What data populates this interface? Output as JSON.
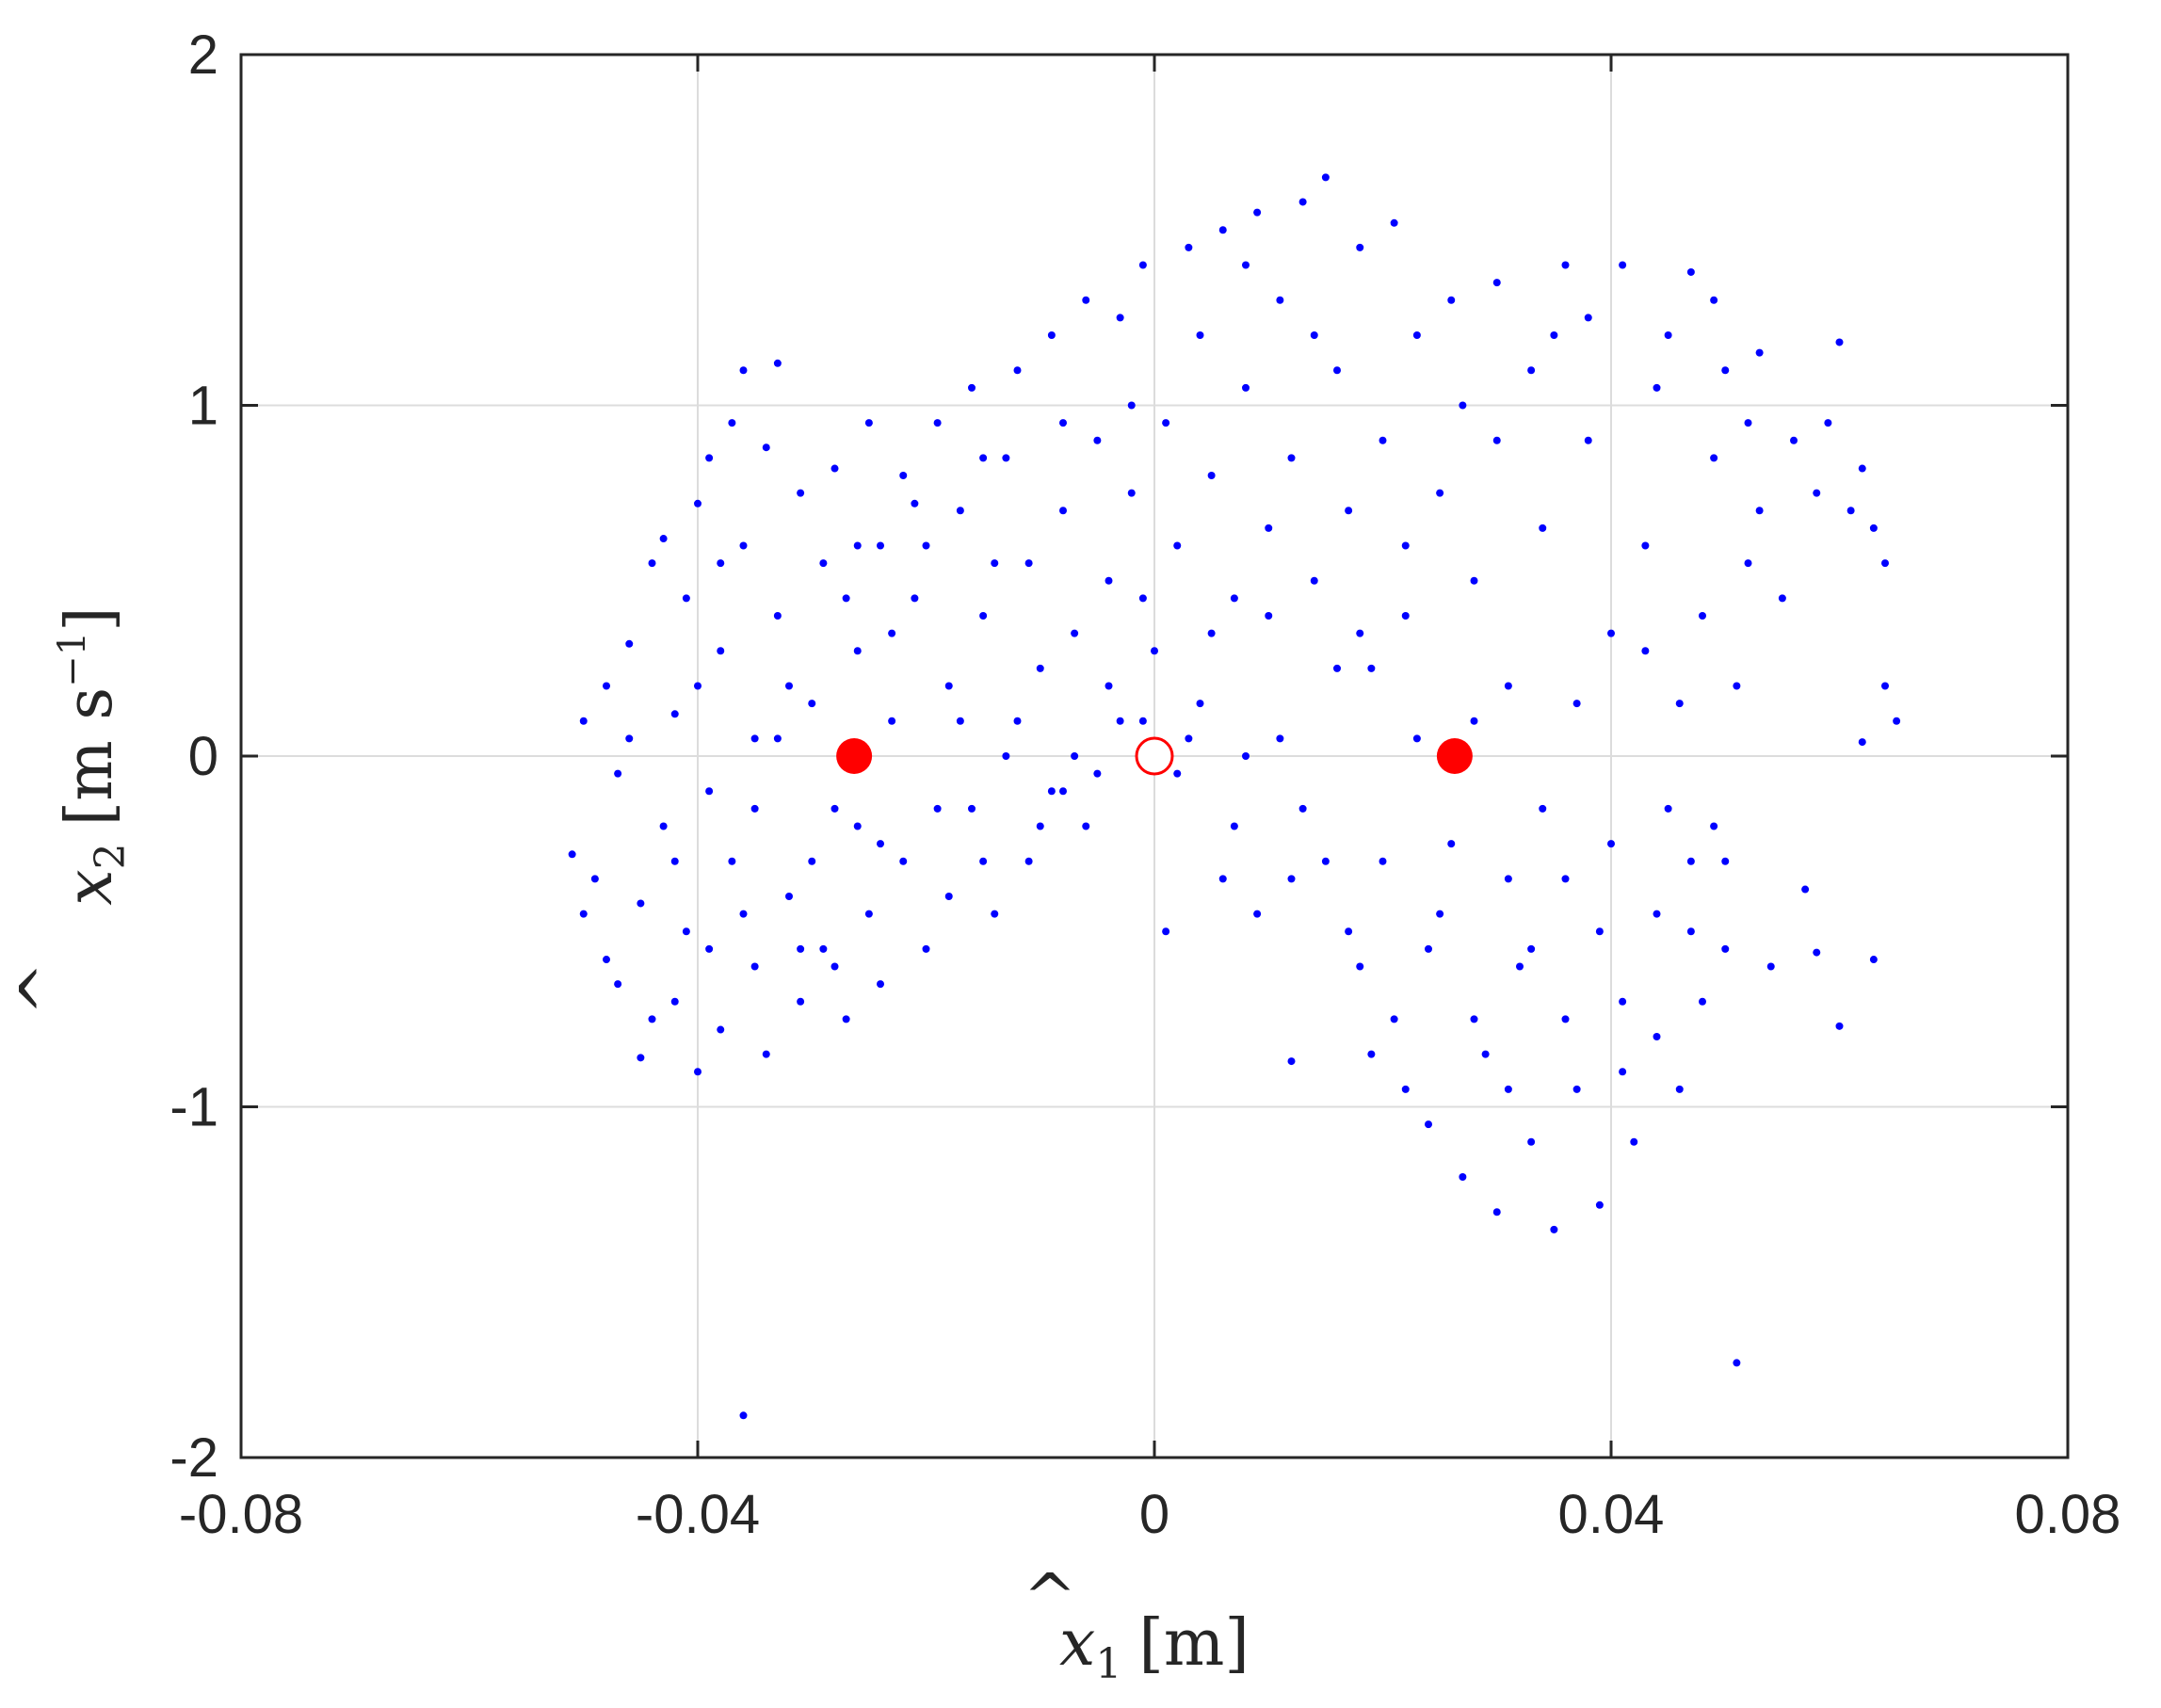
{
  "chart_data": {
    "type": "scatter",
    "title": "",
    "xlabel": {
      "hat_var": "x",
      "subscript": "1",
      "unit": "[m]"
    },
    "ylabel": {
      "hat_var": "x",
      "subscript": "2",
      "unit_prefix": "[m s",
      "unit_sup": "−1",
      "unit_suffix": "]"
    },
    "xlim": [
      -0.08,
      0.08
    ],
    "ylim": [
      -2,
      2
    ],
    "x_ticks": [
      -0.08,
      -0.04,
      0,
      0.04,
      0.08
    ],
    "x_tick_labels": [
      "-0.08",
      "-0.04",
      "0",
      "0.04",
      "0.08"
    ],
    "y_ticks": [
      -2,
      -1,
      0,
      1,
      2
    ],
    "y_tick_labels": [
      "-2",
      "-1",
      "0",
      "1",
      "2"
    ],
    "grid": true,
    "legend": "none",
    "colors": {
      "scatter": "#0000ff",
      "equilibrium": "#ff0000",
      "axes": "#262626",
      "grid": "#dcdcdc"
    },
    "series": [
      {
        "marker": "dot",
        "points": [
          [
            -0.051,
            -0.28
          ],
          [
            -0.05,
            0.1
          ],
          [
            -0.049,
            -0.35
          ],
          [
            -0.048,
            -0.58
          ],
          [
            -0.048,
            0.2
          ],
          [
            -0.047,
            -0.65
          ],
          [
            -0.047,
            -0.05
          ],
          [
            -0.046,
            0.32
          ],
          [
            -0.045,
            -0.42
          ],
          [
            -0.045,
            -0.86
          ],
          [
            -0.044,
            0.55
          ],
          [
            -0.043,
            -0.2
          ],
          [
            -0.043,
            0.62
          ],
          [
            -0.042,
            -0.7
          ],
          [
            -0.042,
            0.12
          ],
          [
            -0.041,
            0.45
          ],
          [
            -0.041,
            -0.5
          ],
          [
            -0.04,
            0.72
          ],
          [
            -0.04,
            -0.9
          ],
          [
            -0.039,
            -0.1
          ],
          [
            -0.039,
            0.85
          ],
          [
            -0.038,
            0.3
          ],
          [
            -0.038,
            -0.78
          ],
          [
            -0.037,
            0.95
          ],
          [
            -0.037,
            -0.3
          ],
          [
            -0.036,
            1.1
          ],
          [
            -0.036,
            0.6
          ],
          [
            -0.036,
            -1.88
          ],
          [
            -0.035,
            -0.6
          ],
          [
            -0.035,
            0.05
          ],
          [
            -0.034,
            0.88
          ],
          [
            -0.034,
            -0.85
          ],
          [
            -0.033,
            1.12
          ],
          [
            -0.033,
            0.4
          ],
          [
            -0.032,
            -0.4
          ],
          [
            -0.031,
            0.75
          ],
          [
            -0.031,
            -0.7
          ],
          [
            -0.03,
            0.15
          ],
          [
            -0.029,
            0.55
          ],
          [
            -0.029,
            -0.55
          ],
          [
            -0.028,
            0.82
          ],
          [
            -0.028,
            -0.15
          ],
          [
            -0.027,
            -0.75
          ],
          [
            -0.026,
            0.3
          ],
          [
            -0.025,
            0.95
          ],
          [
            -0.025,
            -0.45
          ],
          [
            -0.024,
            0.6
          ],
          [
            -0.024,
            -0.65
          ],
          [
            -0.023,
            0.1
          ],
          [
            -0.022,
            0.8
          ],
          [
            -0.022,
            -0.3
          ],
          [
            -0.021,
            0.45
          ],
          [
            -0.02,
            -0.55
          ],
          [
            -0.019,
            0.95
          ],
          [
            -0.018,
            0.2
          ],
          [
            -0.018,
            -0.4
          ],
          [
            -0.017,
            0.7
          ],
          [
            -0.016,
            1.05
          ],
          [
            -0.016,
            -0.15
          ],
          [
            -0.015,
            0.4
          ],
          [
            -0.014,
            -0.45
          ],
          [
            -0.013,
            0.85
          ],
          [
            -0.013,
            0.0
          ],
          [
            -0.012,
            1.1
          ],
          [
            -0.011,
            0.55
          ],
          [
            -0.011,
            -0.3
          ],
          [
            -0.01,
            0.25
          ],
          [
            -0.009,
            1.2
          ],
          [
            -0.009,
            -0.1
          ],
          [
            -0.008,
            0.7
          ],
          [
            -0.007,
            0.35
          ],
          [
            -0.006,
            1.3
          ],
          [
            -0.006,
            -0.2
          ],
          [
            -0.005,
            0.9
          ],
          [
            -0.004,
            0.5
          ],
          [
            -0.003,
            1.25
          ],
          [
            -0.003,
            0.1
          ],
          [
            -0.002,
            0.75
          ],
          [
            -0.001,
            1.4
          ],
          [
            0.0,
            0.3
          ],
          [
            0.001,
            0.95
          ],
          [
            0.001,
            -0.5
          ],
          [
            0.002,
            0.6
          ],
          [
            0.003,
            1.45
          ],
          [
            0.004,
            0.15
          ],
          [
            0.005,
            0.8
          ],
          [
            0.006,
            1.5
          ],
          [
            0.006,
            -0.35
          ],
          [
            0.007,
            0.45
          ],
          [
            0.008,
            1.05
          ],
          [
            0.009,
            1.55
          ],
          [
            0.009,
            -0.45
          ],
          [
            0.01,
            0.65
          ],
          [
            0.011,
            1.3
          ],
          [
            0.011,
            0.05
          ],
          [
            0.012,
            0.85
          ],
          [
            0.012,
            -0.87
          ],
          [
            0.013,
            1.58
          ],
          [
            0.014,
            0.5
          ],
          [
            0.015,
            1.65
          ],
          [
            0.015,
            -0.3
          ],
          [
            0.016,
            1.1
          ],
          [
            0.017,
            0.7
          ],
          [
            0.018,
            1.45
          ],
          [
            0.018,
            -0.6
          ],
          [
            0.019,
            0.25
          ],
          [
            0.02,
            0.9
          ],
          [
            0.021,
            1.52
          ],
          [
            0.021,
            -0.75
          ],
          [
            0.022,
            0.4
          ],
          [
            0.023,
            1.2
          ],
          [
            0.024,
            -1.05
          ],
          [
            0.025,
            0.75
          ],
          [
            0.025,
            -0.45
          ],
          [
            0.026,
            1.3
          ],
          [
            0.027,
            -1.2
          ],
          [
            0.028,
            0.5
          ],
          [
            0.029,
            -0.85
          ],
          [
            0.03,
            1.35
          ],
          [
            0.03,
            -1.3
          ],
          [
            0.031,
            0.2
          ],
          [
            0.032,
            -0.6
          ],
          [
            0.033,
            1.1
          ],
          [
            0.033,
            -1.1
          ],
          [
            0.034,
            0.65
          ],
          [
            0.035,
            -1.35
          ],
          [
            0.036,
            1.4
          ],
          [
            0.036,
            -0.35
          ],
          [
            0.037,
            -0.95
          ],
          [
            0.038,
            0.9
          ],
          [
            0.039,
            -1.28
          ],
          [
            0.04,
            0.35
          ],
          [
            0.041,
            -0.7
          ],
          [
            0.041,
            1.4
          ],
          [
            0.042,
            -1.1
          ],
          [
            0.043,
            0.6
          ],
          [
            0.044,
            -0.45
          ],
          [
            0.045,
            1.2
          ],
          [
            0.046,
            -0.95
          ],
          [
            0.046,
            0.15
          ],
          [
            0.047,
            1.38
          ],
          [
            0.048,
            -0.7
          ],
          [
            0.049,
            0.85
          ],
          [
            0.05,
            -0.3
          ],
          [
            0.05,
            1.1
          ],
          [
            0.051,
            -1.73
          ],
          [
            0.052,
            0.95
          ],
          [
            0.053,
            0.7
          ],
          [
            0.054,
            -0.6
          ],
          [
            0.055,
            0.45
          ],
          [
            0.056,
            0.9
          ],
          [
            0.057,
            -0.38
          ],
          [
            0.058,
            0.75
          ],
          [
            0.058,
            -0.56
          ],
          [
            0.059,
            0.95
          ],
          [
            0.06,
            -0.77
          ],
          [
            0.06,
            1.18
          ],
          [
            0.061,
            0.7
          ],
          [
            0.062,
            0.04
          ],
          [
            0.062,
            0.82
          ],
          [
            0.063,
            -0.58
          ],
          [
            0.063,
            0.65
          ],
          [
            0.064,
            0.2
          ],
          [
            0.064,
            0.55
          ],
          [
            0.065,
            0.1
          ],
          [
            -0.05,
            -0.45
          ],
          [
            -0.046,
            0.05
          ],
          [
            -0.044,
            -0.75
          ],
          [
            -0.04,
            0.2
          ],
          [
            -0.038,
            0.55
          ],
          [
            -0.035,
            -0.15
          ],
          [
            -0.032,
            0.2
          ],
          [
            -0.03,
            -0.3
          ],
          [
            -0.027,
            0.45
          ],
          [
            -0.026,
            -0.2
          ],
          [
            -0.023,
            0.35
          ],
          [
            -0.02,
            0.6
          ],
          [
            -0.017,
            0.1
          ],
          [
            -0.014,
            0.55
          ],
          [
            -0.01,
            -0.2
          ],
          [
            -0.007,
            0.0
          ],
          [
            -0.004,
            0.2
          ],
          [
            -0.001,
            0.45
          ],
          [
            0.002,
            -0.05
          ],
          [
            0.005,
            0.35
          ],
          [
            0.008,
            0.0
          ],
          [
            0.01,
            0.4
          ],
          [
            0.013,
            -0.15
          ],
          [
            0.016,
            0.25
          ],
          [
            0.02,
            -0.3
          ],
          [
            0.023,
            0.05
          ],
          [
            0.026,
            -0.25
          ],
          [
            0.028,
            0.1
          ],
          [
            0.031,
            -0.35
          ],
          [
            0.034,
            -0.15
          ],
          [
            0.037,
            0.15
          ],
          [
            0.04,
            -0.25
          ],
          [
            0.043,
            0.3
          ],
          [
            0.045,
            -0.15
          ],
          [
            0.048,
            0.4
          ],
          [
            0.052,
            0.55
          ],
          [
            0.027,
            1.0
          ],
          [
            0.035,
            1.2
          ],
          [
            0.044,
            1.05
          ],
          [
            0.038,
            1.25
          ],
          [
            0.049,
            1.3
          ],
          [
            0.053,
            1.15
          ],
          [
            0.03,
            0.9
          ],
          [
            0.022,
            0.6
          ],
          [
            0.018,
            0.35
          ],
          [
            0.014,
            1.2
          ],
          [
            0.008,
            1.4
          ],
          [
            0.004,
            1.2
          ],
          [
            -0.002,
            1.0
          ],
          [
            -0.008,
            0.95
          ],
          [
            -0.015,
            0.85
          ],
          [
            -0.021,
            0.72
          ],
          [
            -0.026,
            0.6
          ],
          [
            -0.033,
            0.05
          ],
          [
            -0.039,
            -0.55
          ],
          [
            -0.042,
            -0.3
          ],
          [
            -0.036,
            -0.45
          ],
          [
            -0.031,
            -0.55
          ],
          [
            -0.028,
            -0.6
          ],
          [
            -0.024,
            -0.25
          ],
          [
            -0.019,
            -0.15
          ],
          [
            -0.015,
            -0.3
          ],
          [
            -0.012,
            0.1
          ],
          [
            -0.008,
            -0.1
          ],
          [
            -0.005,
            -0.05
          ],
          [
            -0.001,
            0.1
          ],
          [
            0.003,
            0.05
          ],
          [
            0.007,
            -0.2
          ],
          [
            0.012,
            -0.35
          ],
          [
            0.017,
            -0.5
          ],
          [
            0.019,
            -0.85
          ],
          [
            0.022,
            -0.95
          ],
          [
            0.024,
            -0.55
          ],
          [
            0.028,
            -0.75
          ],
          [
            0.031,
            -0.95
          ],
          [
            0.033,
            -0.55
          ],
          [
            0.036,
            -0.75
          ],
          [
            0.039,
            -0.5
          ],
          [
            0.041,
            -0.9
          ],
          [
            0.044,
            -0.8
          ],
          [
            0.047,
            -0.5
          ],
          [
            0.049,
            -0.2
          ],
          [
            0.051,
            0.2
          ],
          [
            0.05,
            -0.55
          ],
          [
            0.047,
            -0.3
          ]
        ]
      },
      {
        "name": "",
        "marker": "filled-circle",
        "points": [
          [
            -0.0263,
            0.0
          ],
          [
            0.0263,
            0.0
          ]
        ]
      },
      {
        "name": "",
        "marker": "open-circle",
        "points": [
          [
            0.0,
            0.0
          ]
        ]
      }
    ]
  }
}
